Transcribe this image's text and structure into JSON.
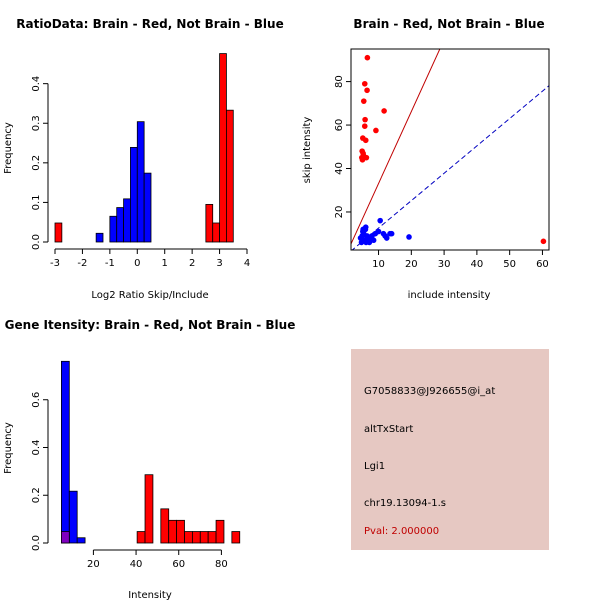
{
  "colors": {
    "red": "#ff0000",
    "blue": "#0000ff",
    "overlap": "#7f00bf",
    "info_bg": "#e6c8c2",
    "pval": "#c00000",
    "diag_red": "#c00000",
    "diag_blue": "#0000c0"
  },
  "chart_data": [
    {
      "type": "bar",
      "title": "RatioData: Brain - Red, Not Brain - Blue",
      "xlabel": "Log2 Ratio Skip/Include",
      "ylabel": "Frequency",
      "xlim": [
        -3,
        4
      ],
      "ylim": [
        0,
        0.48
      ],
      "xticks": [
        -3,
        -2,
        -1,
        0,
        1,
        2,
        3,
        4
      ],
      "yticks": [
        0.0,
        0.1,
        0.2,
        0.3,
        0.4
      ],
      "bin_width": 0.25,
      "series": [
        {
          "name": "Brain",
          "color": "red",
          "bins": [
            [
              -3.0,
              0.048
            ],
            [
              2.5,
              0.095
            ],
            [
              2.75,
              0.048
            ],
            [
              3.0,
              0.476
            ],
            [
              3.25,
              0.333
            ]
          ]
        },
        {
          "name": "Not Brain",
          "color": "blue",
          "bins": [
            [
              -1.5,
              0.022
            ],
            [
              -1.0,
              0.065
            ],
            [
              -0.75,
              0.087
            ],
            [
              -0.5,
              0.109
            ],
            [
              -0.25,
              0.239
            ],
            [
              0.0,
              0.304
            ],
            [
              0.25,
              0.174
            ]
          ]
        }
      ]
    },
    {
      "type": "scatter",
      "title": "Brain - Red, Not Brain - Blue",
      "xlabel": "include intensity",
      "ylabel": "skip intensity",
      "xlim": [
        1.6,
        62
      ],
      "ylim": [
        2.5,
        95
      ],
      "xticks": [
        10,
        20,
        30,
        40,
        50,
        60
      ],
      "yticks": [
        20,
        40,
        60,
        80
      ],
      "reference_lines": [
        {
          "color": "diag_red",
          "slope": 3.31,
          "intercept": 0
        },
        {
          "color": "diag_blue",
          "slope": 1.26,
          "intercept": 0
        }
      ],
      "series": [
        {
          "name": "Brain",
          "color": "red",
          "x": [
            6.6,
            5.8,
            6.5,
            11.7,
            5.5,
            5.9,
            5.8,
            9.2,
            5.2,
            6.1,
            5.0,
            5.3,
            4.9,
            5.1,
            5.4,
            6.3,
            60.3
          ],
          "y": [
            91,
            79,
            76,
            66.5,
            71,
            62.5,
            59.5,
            57.5,
            54,
            53,
            48,
            47,
            45,
            44,
            46,
            45,
            6.5
          ]
        },
        {
          "name": "Not Brain",
          "color": "blue",
          "x": [
            4.5,
            5.0,
            5.5,
            5.2,
            6.0,
            6.5,
            7.0,
            7.5,
            5.8,
            6.2,
            8.0,
            9.0,
            10.0,
            10.5,
            11.5,
            12.0,
            12.5,
            13.5,
            4.8,
            5.6,
            6.8,
            7.2,
            8.5,
            19.3,
            14.0,
            5.3,
            6.1
          ],
          "y": [
            8,
            9,
            10,
            11,
            12,
            9,
            8,
            7,
            7,
            6,
            9,
            10,
            11,
            16,
            10,
            9,
            8,
            10,
            6,
            7,
            8,
            6,
            7,
            8.5,
            10,
            12,
            13
          ]
        }
      ]
    },
    {
      "type": "bar",
      "title": "Gene Itensity: Brain - Red, Not Brain - Blue",
      "xlabel": "Intensity",
      "ylabel": "Frequency",
      "xlim": [
        2,
        92
      ],
      "ylim": [
        0,
        0.8
      ],
      "xticks": [
        20,
        40,
        60,
        80
      ],
      "yticks": [
        0.0,
        0.2,
        0.4,
        0.6
      ],
      "bin_width": 3.7,
      "series": [
        {
          "name": "Brain",
          "color": "red",
          "bins": [
            [
              5.0,
              0.048
            ],
            [
              40.5,
              0.048
            ],
            [
              44.2,
              0.286
            ],
            [
              51.6,
              0.143
            ],
            [
              55.3,
              0.095
            ],
            [
              59.0,
              0.095
            ],
            [
              62.7,
              0.048
            ],
            [
              66.4,
              0.048
            ],
            [
              70.1,
              0.048
            ],
            [
              73.8,
              0.048
            ],
            [
              77.5,
              0.095
            ],
            [
              84.9,
              0.048
            ]
          ]
        },
        {
          "name": "Not Brain",
          "color": "blue",
          "bins": [
            [
              5.0,
              0.761
            ],
            [
              8.7,
              0.217
            ],
            [
              12.4,
              0.022
            ]
          ]
        }
      ]
    }
  ],
  "info": {
    "probe_id": "G7058833@J926655@i_at",
    "event_type": "altTxStart",
    "gene": "Lgi1",
    "location": "chr19.13094-1.s",
    "pval": "Pval: 2.000000"
  }
}
